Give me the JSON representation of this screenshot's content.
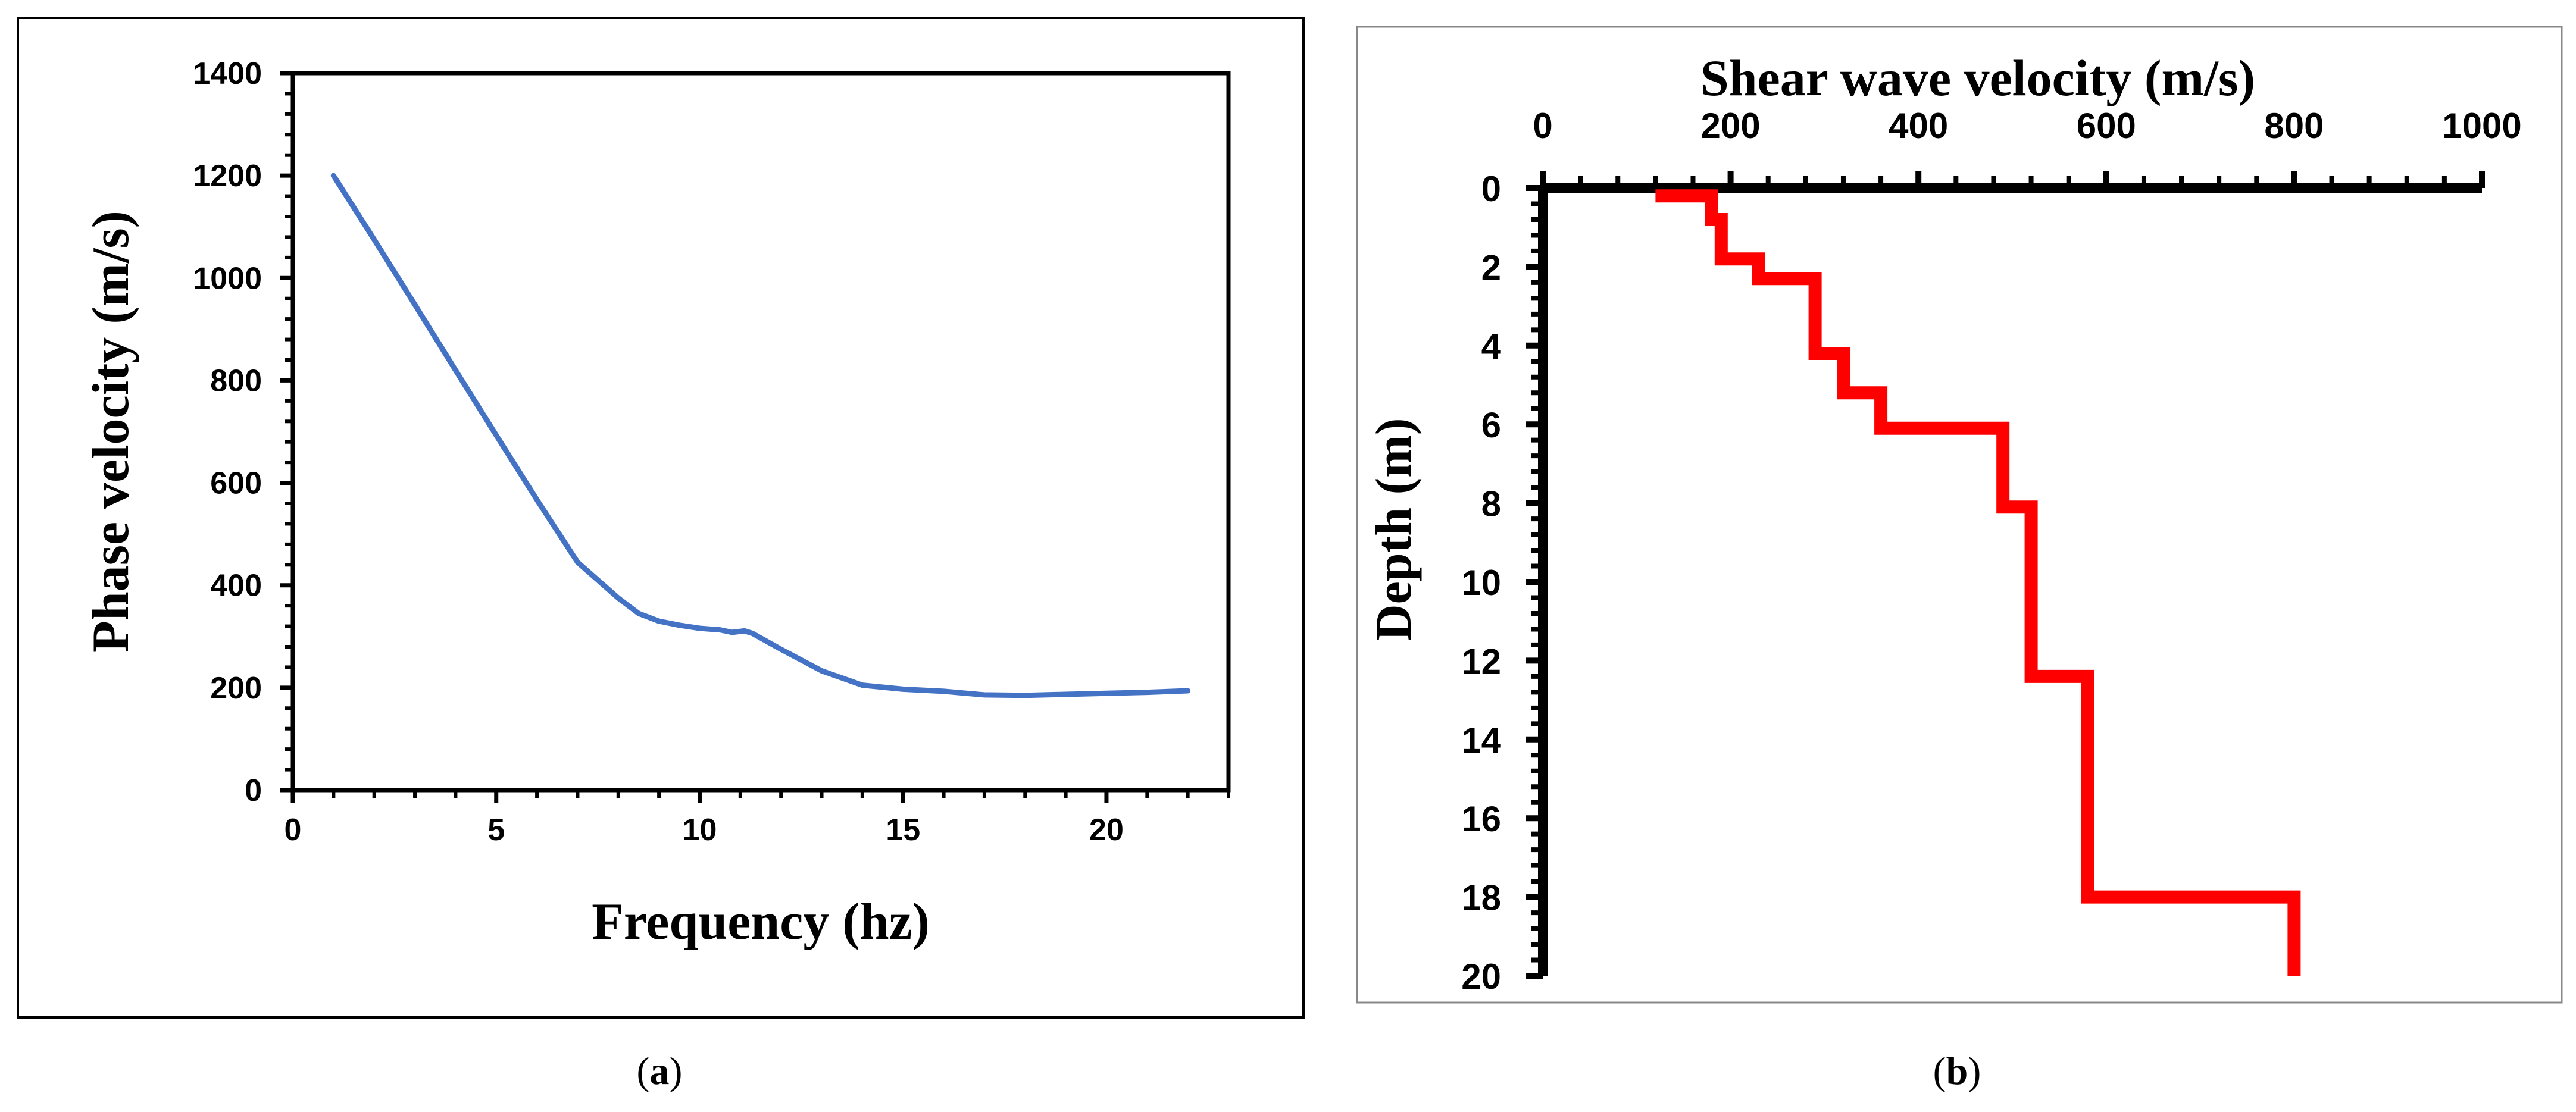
{
  "colors": {
    "blue_line": "#4472C4",
    "red_line": "#FF0000",
    "axis": "#000000",
    "frame": "#000000"
  },
  "chart_data": [
    {
      "panel": "a",
      "type": "line",
      "caption": {
        "open": "(",
        "letter": "a",
        "close": ")"
      },
      "xlabel": "Frequency (hz)",
      "ylabel": "Phase velocity (m/s)",
      "xlim": [
        0,
        23
      ],
      "ylim": [
        0,
        1400
      ],
      "x_ticks": [
        "0",
        "5",
        "10",
        "15",
        "20"
      ],
      "x_tick_values": [
        0,
        5,
        10,
        15,
        20
      ],
      "y_ticks": [
        "0",
        "200",
        "400",
        "600",
        "800",
        "1000",
        "1200",
        "1400"
      ],
      "y_tick_values": [
        0,
        200,
        400,
        600,
        800,
        1000,
        1200,
        1400
      ],
      "grid": false,
      "series": [
        {
          "name": "Phase velocity",
          "x": [
            1,
            2,
            3,
            4,
            5,
            6,
            7,
            8,
            8.5,
            9,
            9.5,
            10,
            10.5,
            10.8,
            11.1,
            11.3,
            12,
            13,
            14,
            15,
            16,
            17,
            18,
            19,
            20,
            21,
            22
          ],
          "y": [
            1200,
            1075,
            948,
            820,
            693,
            567,
            445,
            375,
            345,
            330,
            322,
            316,
            313,
            308,
            311,
            306,
            275,
            233,
            205,
            197,
            193,
            186,
            185,
            187,
            189,
            191,
            194
          ]
        }
      ]
    },
    {
      "panel": "b",
      "type": "line",
      "caption": {
        "open": "(",
        "letter": "b",
        "close": ")"
      },
      "xlabel": "Shear wave velocity (m/s)",
      "ylabel": "Depth (m)",
      "xlim": [
        0,
        1000
      ],
      "ylim": [
        0,
        20
      ],
      "y_inverted": true,
      "x_axis_position": "top",
      "x_ticks": [
        "0",
        "200",
        "400",
        "600",
        "800",
        "1000"
      ],
      "x_tick_values": [
        0,
        200,
        400,
        600,
        800,
        1000
      ],
      "y_ticks": [
        "0",
        "2",
        "4",
        "6",
        "8",
        "10",
        "12",
        "14",
        "16",
        "18",
        "20"
      ],
      "y_tick_values": [
        0,
        2,
        4,
        6,
        8,
        10,
        12,
        14,
        16,
        18,
        20
      ],
      "grid": false,
      "series": [
        {
          "name": "Shear wave velocity profile",
          "velocity": [
            120,
            180,
            180,
            190,
            190,
            230,
            230,
            290,
            290,
            320,
            320,
            360,
            360,
            490,
            490,
            520,
            520,
            580,
            580,
            800,
            800
          ],
          "depth": [
            0.2,
            0.2,
            0.8,
            0.8,
            1.8,
            1.8,
            2.3,
            2.3,
            4.2,
            4.2,
            5.2,
            5.2,
            6.1,
            6.1,
            8.1,
            8.1,
            12.4,
            12.4,
            18.0,
            18.0,
            20.0
          ]
        }
      ]
    }
  ]
}
